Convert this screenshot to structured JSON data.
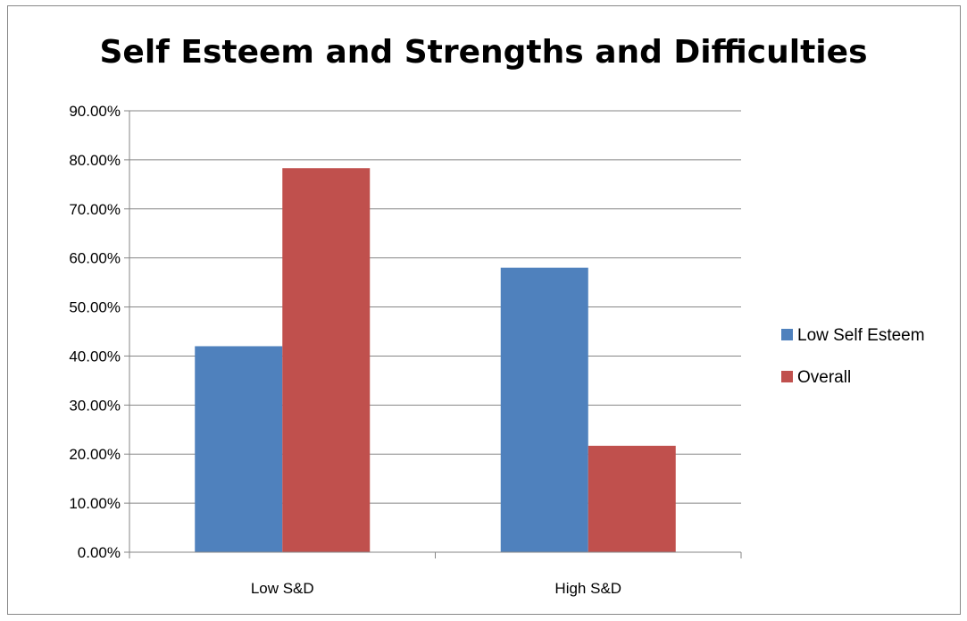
{
  "chart_data": {
    "type": "bar",
    "title": "Self Esteem and Strengths and Difficulties",
    "categories": [
      "Low S&D",
      "High S&D"
    ],
    "series": [
      {
        "name": "Low Self Esteem",
        "values": [
          0.42,
          0.58
        ],
        "color": "#4F81BD"
      },
      {
        "name": "Overall",
        "values": [
          0.783,
          0.217
        ],
        "color": "#C0504D"
      }
    ],
    "yticks": [
      "0.00%",
      "10.00%",
      "20.00%",
      "30.00%",
      "40.00%",
      "50.00%",
      "60.00%",
      "70.00%",
      "80.00%",
      "90.00%"
    ],
    "ylim": [
      0,
      0.9
    ],
    "grid": true,
    "legend_position": "right"
  }
}
